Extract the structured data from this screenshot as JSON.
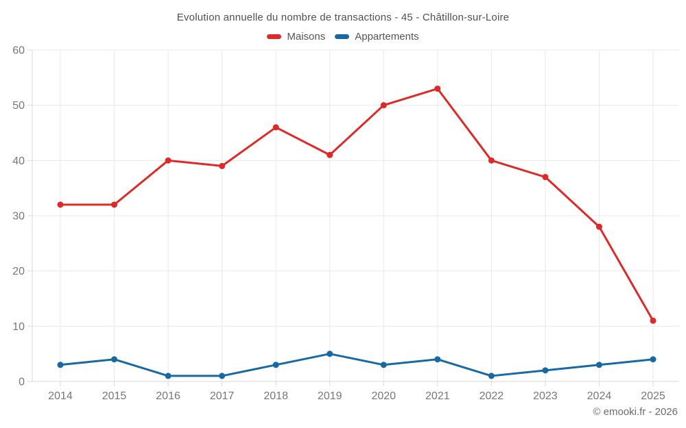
{
  "header": {
    "title": "Evolution annuelle du nombre de transactions - 45 - Châtillon-sur-Loire"
  },
  "footer": {
    "text": "© emooki.fr - 2026"
  },
  "colors": {
    "maisons": "#e02828",
    "appartements": "#1769a5",
    "gridline": "#e8e8e8",
    "axis_line": "#d9d9d9",
    "tick_label": "#767676"
  },
  "chart_data": {
    "type": "line",
    "title": "Evolution annuelle du nombre de transactions - 45 - Châtillon-sur-Loire",
    "categories": [
      "2014",
      "2015",
      "2016",
      "2017",
      "2018",
      "2019",
      "2020",
      "2021",
      "2022",
      "2023",
      "2024",
      "2025"
    ],
    "series": [
      {
        "name": "Maisons",
        "color": "#e02828",
        "values": [
          32,
          32,
          40,
          39,
          46,
          41,
          50,
          53,
          40,
          37,
          28,
          11
        ]
      },
      {
        "name": "Appartements",
        "color": "#1769a5",
        "values": [
          3,
          4,
          1,
          1,
          3,
          5,
          3,
          4,
          1,
          2,
          3,
          4
        ]
      }
    ],
    "xlabel": "",
    "ylabel": "",
    "ylim": [
      0,
      60
    ],
    "ytick_step": 10,
    "yticks": [
      0,
      10,
      20,
      30,
      40,
      50,
      60
    ],
    "grid": true,
    "legend_position": "top",
    "point_style": "circle"
  }
}
